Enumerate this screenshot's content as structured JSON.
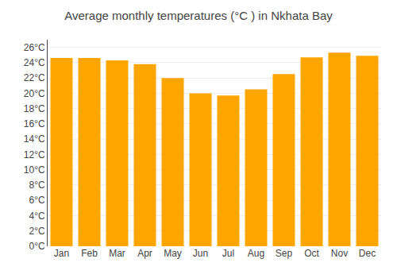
{
  "chart_data": {
    "type": "bar",
    "title": "Average monthly temperatures (°C ) in Nkhata Bay",
    "categories": [
      "Jan",
      "Feb",
      "Mar",
      "Apr",
      "May",
      "Jun",
      "Jul",
      "Aug",
      "Sep",
      "Oct",
      "Nov",
      "Dec"
    ],
    "values": [
      24.6,
      24.6,
      24.3,
      23.8,
      22.0,
      20.0,
      19.7,
      20.5,
      22.5,
      24.7,
      25.3,
      24.9
    ],
    "color": "#FFA500",
    "ylim": [
      0,
      27
    ],
    "yticks": [
      {
        "value": 0,
        "label": "0°C"
      },
      {
        "value": 2,
        "label": "2°C"
      },
      {
        "value": 4,
        "label": "4°C"
      },
      {
        "value": 6,
        "label": "6°C"
      },
      {
        "value": 8,
        "label": "8°C"
      },
      {
        "value": 10,
        "label": "10°C"
      },
      {
        "value": 12,
        "label": "12°C"
      },
      {
        "value": 14,
        "label": "14°C"
      },
      {
        "value": 16,
        "label": "16°C"
      },
      {
        "value": 18,
        "label": "18°C"
      },
      {
        "value": 20,
        "label": "20°C"
      },
      {
        "value": 22,
        "label": "22°C"
      },
      {
        "value": 24,
        "label": "24°C"
      },
      {
        "value": 26,
        "label": "26°C"
      }
    ],
    "grid": true
  }
}
